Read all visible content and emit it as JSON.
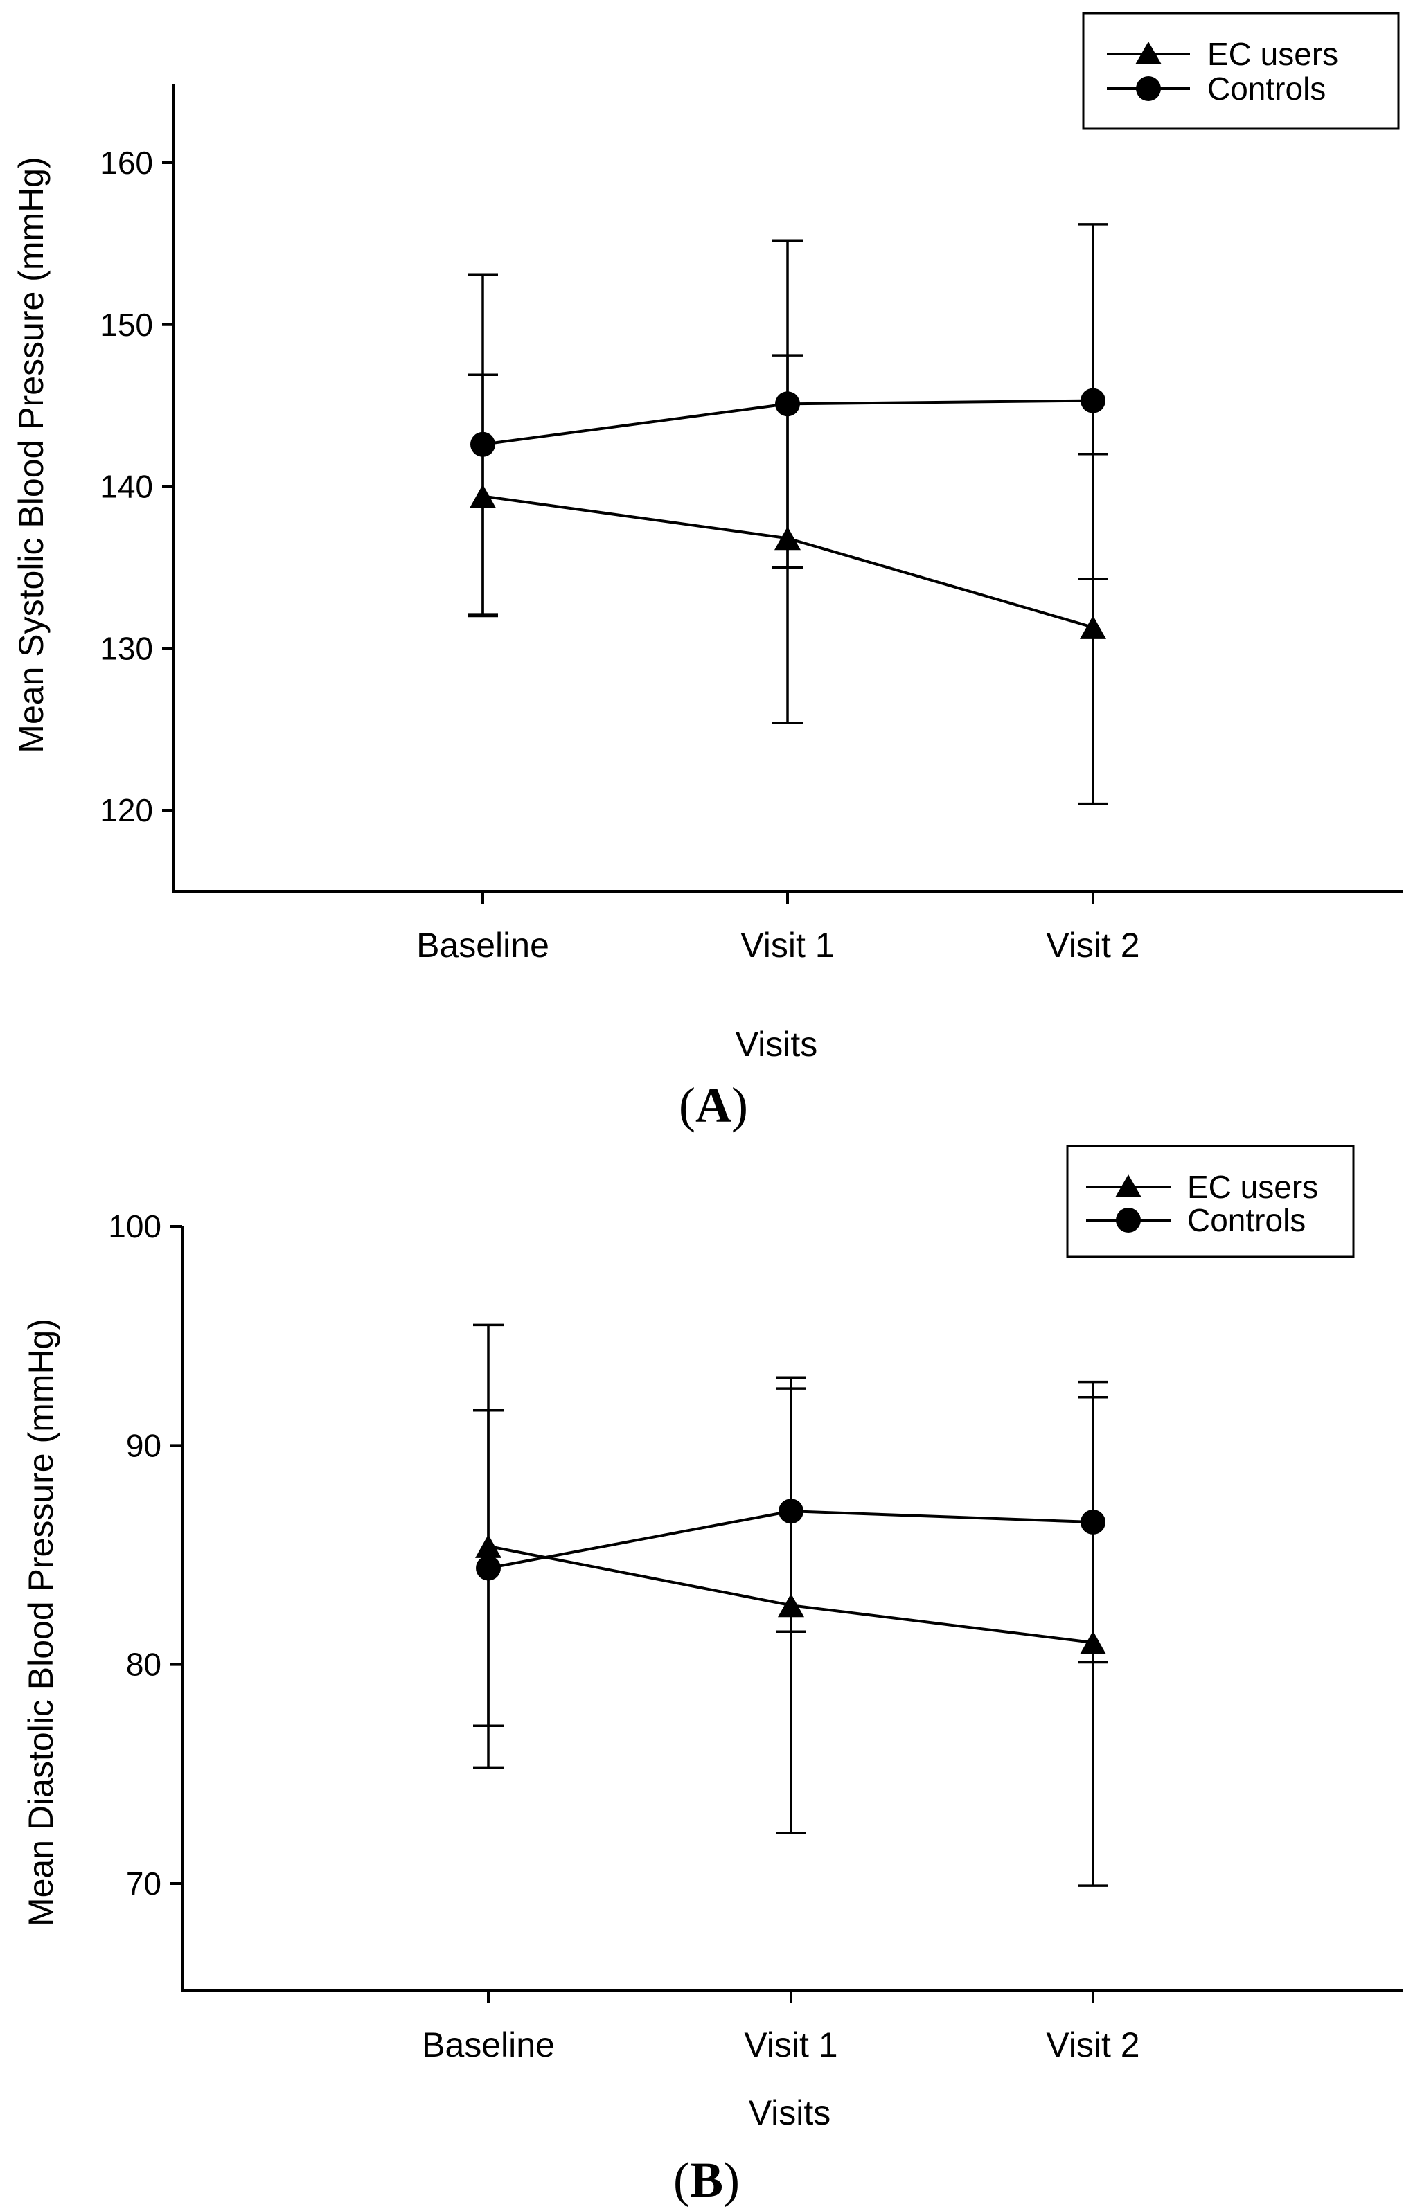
{
  "chart_data": [
    {
      "type": "line",
      "panel_label": "A",
      "categories": [
        "Baseline",
        "Visit 1",
        "Visit 2"
      ],
      "xlabel": "Visits",
      "ylabel": "Mean Systolic Blood Pressure (mmHg)",
      "yticks": [
        120,
        130,
        140,
        150,
        160
      ],
      "ylim": [
        115,
        165
      ],
      "legend_position": "top-right",
      "series": [
        {
          "name": "EC users",
          "marker": "triangle",
          "values": [
            139.4,
            136.8,
            131.3
          ],
          "err_low": [
            132.0,
            125.4,
            120.4
          ],
          "err_high": [
            146.9,
            148.1,
            142.0
          ]
        },
        {
          "name": "Controls",
          "marker": "circle",
          "values": [
            142.6,
            145.1,
            145.3
          ],
          "err_low": [
            132.1,
            135.0,
            134.3
          ],
          "err_high": [
            153.1,
            155.2,
            156.2
          ]
        }
      ]
    },
    {
      "type": "line",
      "panel_label": "B",
      "categories": [
        "Baseline",
        "Visit 1",
        "Visit 2"
      ],
      "xlabel": "Visits",
      "ylabel": "Mean Diastolic Blood Pressure (mmHg)",
      "yticks": [
        70,
        80,
        90,
        100
      ],
      "ylim": [
        65,
        100
      ],
      "legend_position": "top-right",
      "series": [
        {
          "name": "EC users",
          "marker": "triangle",
          "values": [
            85.4,
            82.7,
            81.0
          ],
          "err_low": [
            75.3,
            72.3,
            69.9
          ],
          "err_high": [
            95.5,
            93.1,
            92.2
          ]
        },
        {
          "name": "Controls",
          "marker": "circle",
          "values": [
            84.4,
            87.0,
            86.5
          ],
          "err_low": [
            77.2,
            81.5,
            80.1
          ],
          "err_high": [
            91.6,
            92.6,
            92.9
          ]
        }
      ]
    }
  ]
}
